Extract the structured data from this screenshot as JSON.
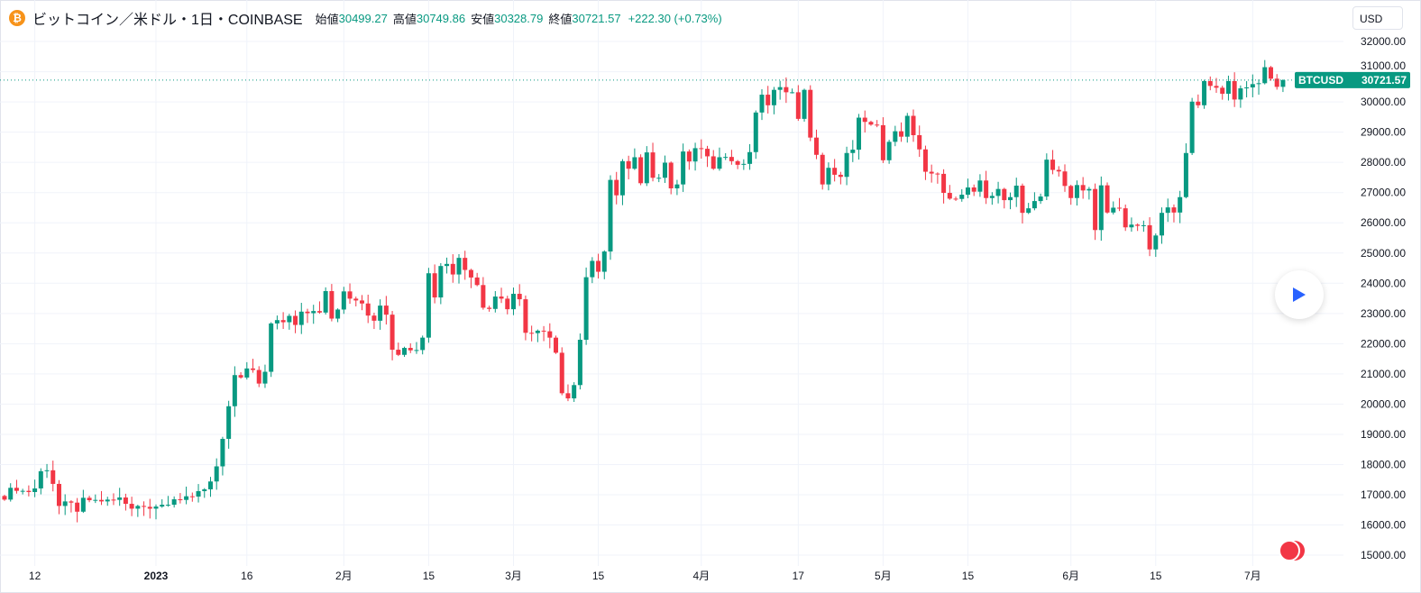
{
  "header": {
    "symbol_title": "ビットコイン／米ドル・1日・COINBASE",
    "open_label": "始値",
    "open": "30499.27",
    "high_label": "高値",
    "high": "30749.86",
    "low_label": "安値",
    "low": "30328.79",
    "close_label": "終値",
    "close": "30721.57",
    "change": "+222.30 (+0.73%)"
  },
  "currency_button": "USD",
  "price_tag": {
    "symbol": "BTCUSD",
    "price": "30721.57"
  },
  "colors": {
    "up": "#089981",
    "down": "#f23645",
    "grid": "#f0f3fa",
    "logo": "#f7931a"
  },
  "chart_data": {
    "type": "candlestick",
    "title": "ビットコイン／米ドル・1日・COINBASE",
    "start_date": "2022-12-07",
    "interval": "1D",
    "ylim": [
      14800,
      32300
    ],
    "y_ticks": [
      "15000.00",
      "16000.00",
      "17000.00",
      "18000.00",
      "19000.00",
      "20000.00",
      "21000.00",
      "22000.00",
      "23000.00",
      "24000.00",
      "25000.00",
      "26000.00",
      "27000.00",
      "28000.00",
      "29000.00",
      "30000.00",
      "31000.00",
      "32000.00"
    ],
    "x_ticks": [
      {
        "label": "12",
        "day": 5
      },
      {
        "label": "2023",
        "day": 25,
        "bold": true
      },
      {
        "label": "16",
        "day": 40
      },
      {
        "label": "2月",
        "day": 56
      },
      {
        "label": "15",
        "day": 70
      },
      {
        "label": "3月",
        "day": 84
      },
      {
        "label": "15",
        "day": 98
      },
      {
        "label": "4月",
        "day": 115
      },
      {
        "label": "17",
        "day": 131
      },
      {
        "label": "5月",
        "day": 145
      },
      {
        "label": "15",
        "day": 159
      },
      {
        "label": "6月",
        "day": 176
      },
      {
        "label": "15",
        "day": 190
      },
      {
        "label": "7月",
        "day": 206
      }
    ],
    "first_open": 16960,
    "closes": [
      16840,
      17230,
      17130,
      17130,
      17090,
      17210,
      17780,
      17810,
      17360,
      16630,
      16780,
      16740,
      16440,
      16900,
      16820,
      16830,
      16780,
      16840,
      16830,
      16910,
      16700,
      16540,
      16630,
      16600,
      16540,
      16610,
      16670,
      16670,
      16850,
      16830,
      16950,
      16940,
      17120,
      17180,
      17440,
      17940,
      18850,
      19930,
      20960,
      20880,
      21180,
      21130,
      20680,
      21070,
      22670,
      22780,
      22710,
      22920,
      22620,
      23060,
      23010,
      23080,
      23030,
      23740,
      22830,
      23130,
      23730,
      23490,
      23430,
      23330,
      22930,
      22760,
      23260,
      22960,
      21800,
      21630,
      21860,
      21780,
      21790,
      22200,
      24330,
      23530,
      24570,
      24640,
      24290,
      24840,
      24440,
      24190,
      23940,
      23190,
      23150,
      23560,
      23490,
      23140,
      23650,
      23470,
      22360,
      22350,
      22430,
      22410,
      22200,
      21700,
      20360,
      20190,
      20630,
      22130,
      24200,
      24740,
      24380,
      25050,
      27420,
      26910,
      28040,
      27790,
      28170,
      27310,
      28330,
      27490,
      27490,
      27990,
      27140,
      27270,
      28360,
      28030,
      28470,
      28450,
      28200,
      27790,
      28170,
      28180,
      28040,
      27920,
      27950,
      28340,
      29650,
      30240,
      29890,
      30400,
      30490,
      30320,
      30320,
      29440,
      30400,
      28820,
      28250,
      27270,
      27820,
      27590,
      27520,
      28310,
      28420,
      29480,
      29340,
      29250,
      29230,
      28070,
      28680,
      29030,
      28850,
      29540,
      28900,
      28430,
      27690,
      27630,
      27620,
      26990,
      26800,
      26790,
      26930,
      27170,
      27030,
      27400,
      26820,
      26890,
      27120,
      26750,
      26850,
      27230,
      26330,
      26480,
      26720,
      26870,
      28090,
      27750,
      27700,
      27220,
      26820,
      27250,
      27070,
      27120,
      25760,
      27240,
      26340,
      26500,
      26480,
      25850,
      25940,
      25900,
      25920,
      25120,
      25580,
      26330,
      26510,
      26340,
      26850,
      28310,
      30010,
      29890,
      30690,
      30530,
      30470,
      30270,
      30690,
      30080,
      30450,
      30480,
      30590,
      30620,
      31150,
      30770,
      30499.27,
      30721.57
    ],
    "last_candle": {
      "open": 30499.27,
      "high": 30749.86,
      "low": 30328.79,
      "close": 30721.57
    },
    "last_price": 30721.57
  }
}
